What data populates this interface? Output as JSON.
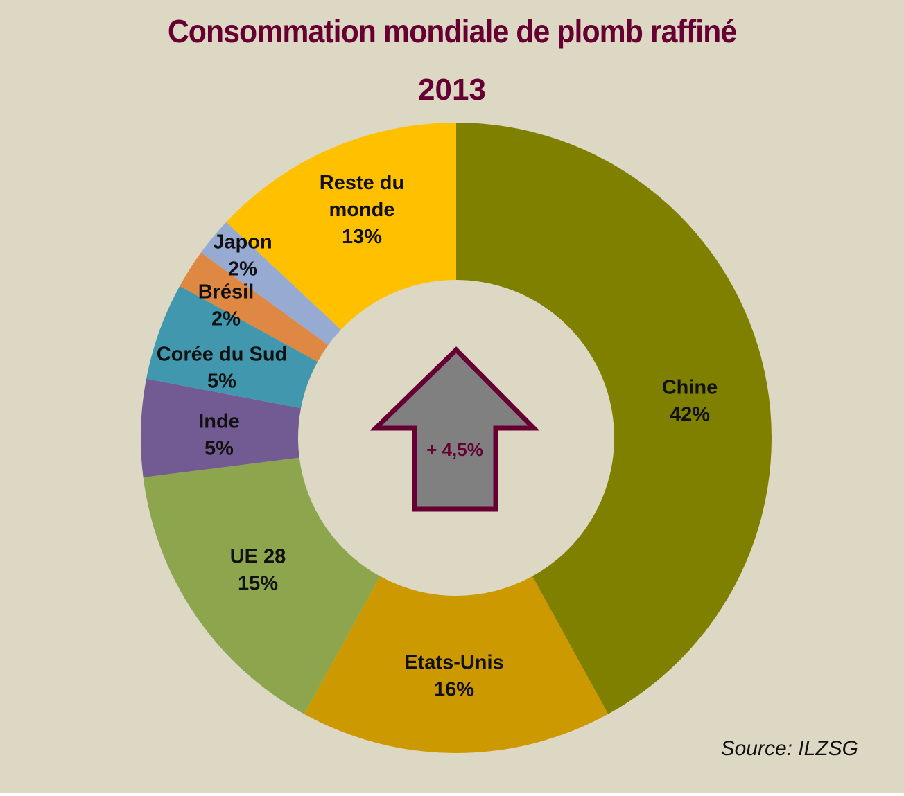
{
  "chart_data": {
    "type": "pie",
    "variant": "donut",
    "title": "Consommation mondiale de plomb raffiné",
    "subtitle": "2013",
    "start_angle_deg": 0,
    "direction": "clockwise",
    "categories": [
      "Chine",
      "Etats-Unis",
      "UE 28",
      "Inde",
      "Corée du Sud",
      "Brésil",
      "Japon",
      "Reste du monde"
    ],
    "values": [
      42,
      16,
      15,
      5,
      5,
      2,
      2,
      13
    ],
    "unit": "%",
    "slices": [
      {
        "label": "Chine",
        "value": 42,
        "value_label": "42%",
        "color": "#808000"
      },
      {
        "label": "Etats-Unis",
        "value": 16,
        "value_label": "16%",
        "color": "#cc9900"
      },
      {
        "label": "UE 28",
        "value": 15,
        "value_label": "15%",
        "color": "#8da64e"
      },
      {
        "label": "Inde",
        "value": 5,
        "value_label": "5%",
        "color": "#725a92"
      },
      {
        "label": "Corée du Sud",
        "value": 5,
        "value_label": "5%",
        "color": "#4198ae"
      },
      {
        "label": "Brésil",
        "value": 2,
        "value_label": "2%",
        "color": "#de8843"
      },
      {
        "label": "Japon",
        "value": 2,
        "value_label": "2%",
        "color": "#97abd2"
      },
      {
        "label": "Reste du monde",
        "value": 13,
        "value_label": "13%",
        "color": "#ffc000"
      }
    ],
    "center_annotation": {
      "text": "+ 4,5%",
      "shape": "up-arrow",
      "fill": "#808080",
      "stroke": "#660033"
    },
    "source": "Source: ILZSG",
    "legend": "none (labels on slices)"
  },
  "colors": {
    "background": "#ddd8c4",
    "title": "#660033",
    "label_text": "#111111"
  }
}
